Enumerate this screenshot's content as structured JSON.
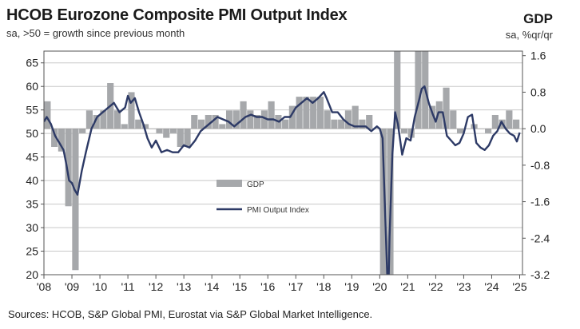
{
  "colors": {
    "gdp_bar": "#a6a8ab",
    "pmi_line": "#2d3a66",
    "grid": "#c8c8c8",
    "axis": "#555555"
  },
  "chart_data": {
    "type": "bar+line",
    "title": "HCOB Eurozone Composite PMI Output Index",
    "subtitle": "sa, >50 = growth since previous month",
    "right_title": "GDP",
    "right_subtitle": "sa, %qr/qr",
    "source": "Sources: HCOB, S&P Global PMI,  Eurostat via S&P Global Market Intelligence.",
    "left_axis": {
      "ticks": [
        "20",
        "25",
        "30",
        "35",
        "40",
        "45",
        "50",
        "55",
        "60",
        "65"
      ],
      "range": [
        20,
        67.5
      ]
    },
    "right_axis": {
      "ticks": [
        "-3.2",
        "-2.4",
        "-1.6",
        "-0.8",
        "0.0",
        "0.8",
        "1.6"
      ],
      "range": [
        -3.2,
        1.7
      ]
    },
    "x_ticks": [
      "'08",
      "'09",
      "'10",
      "'11",
      "'12",
      "'13",
      "'14",
      "'15",
      "'16",
      "'17",
      "'18",
      "'19",
      "'20",
      "'21",
      "'22",
      "'23",
      "'24",
      "'25"
    ],
    "x_range": [
      2008.0,
      2025.1
    ],
    "legend": [
      {
        "name": "GDP",
        "kind": "bar"
      },
      {
        "name": "PMI Output Index",
        "kind": "line"
      }
    ],
    "gdp_quarterly": {
      "start": "2008-Q1",
      "unit": "% q/q",
      "values": [
        0.6,
        -0.4,
        -0.5,
        -1.7,
        -3.1,
        -0.1,
        0.4,
        0.3,
        0.4,
        1.0,
        0.4,
        0.1,
        0.8,
        0.2,
        0.1,
        0.0,
        -0.1,
        -0.2,
        -0.1,
        -0.4,
        -0.4,
        0.3,
        0.2,
        0.3,
        0.3,
        0.1,
        0.4,
        0.4,
        0.6,
        0.4,
        0.3,
        0.4,
        0.6,
        0.3,
        0.2,
        0.5,
        0.7,
        0.7,
        0.7,
        0.7,
        0.4,
        0.2,
        0.2,
        0.4,
        0.5,
        0.2,
        0.3,
        0.0,
        -3.5,
        -11.2,
        12.5,
        -0.1,
        -0.2,
        2.2,
        2.2,
        0.5,
        0.6,
        0.9,
        0.4,
        -0.1,
        0.0,
        0.1,
        0.0,
        -0.1,
        0.3,
        0.2,
        0.4,
        0.2
      ],
      "out_of_range_labels_note": ""
    },
    "pmi_series": {
      "sampling": "quarterly-ish points",
      "x": [
        2008.0,
        2008.1,
        2008.25,
        2008.4,
        2008.55,
        2008.7,
        2008.8,
        2008.9,
        2009.0,
        2009.1,
        2009.2,
        2009.35,
        2009.5,
        2009.7,
        2009.9,
        2010.1,
        2010.3,
        2010.5,
        2010.7,
        2010.9,
        2011.0,
        2011.1,
        2011.25,
        2011.4,
        2011.55,
        2011.7,
        2011.85,
        2012.0,
        2012.2,
        2012.4,
        2012.6,
        2012.8,
        2013.0,
        2013.2,
        2013.4,
        2013.6,
        2013.8,
        2014.0,
        2014.2,
        2014.4,
        2014.6,
        2014.8,
        2015.0,
        2015.2,
        2015.4,
        2015.6,
        2015.8,
        2016.0,
        2016.2,
        2016.4,
        2016.6,
        2016.8,
        2017.0,
        2017.2,
        2017.4,
        2017.6,
        2017.8,
        2018.0,
        2018.1,
        2018.3,
        2018.5,
        2018.7,
        2018.9,
        2019.1,
        2019.3,
        2019.5,
        2019.7,
        2019.9,
        2020.0,
        2020.1,
        2020.2,
        2020.3,
        2020.35,
        2020.45,
        2020.55,
        2020.65,
        2020.8,
        2020.95,
        2021.1,
        2021.25,
        2021.4,
        2021.5,
        2021.6,
        2021.75,
        2021.9,
        2022.0,
        2022.1,
        2022.25,
        2022.4,
        2022.55,
        2022.7,
        2022.85,
        2023.0,
        2023.15,
        2023.3,
        2023.45,
        2023.6,
        2023.75,
        2023.9,
        2024.05,
        2024.2,
        2024.35,
        2024.5,
        2024.65,
        2024.8,
        2024.9,
        2025.0
      ],
      "values": [
        52.5,
        53.5,
        52.0,
        49.5,
        48.0,
        46.5,
        43.5,
        40.0,
        39.5,
        38.0,
        37.0,
        42.0,
        46.0,
        51.0,
        53.5,
        54.5,
        55.5,
        56.5,
        54.5,
        55.5,
        58.0,
        56.5,
        57.5,
        54.5,
        52.0,
        49.0,
        47.0,
        48.5,
        46.0,
        46.5,
        46.0,
        46.0,
        47.5,
        47.0,
        48.5,
        50.5,
        51.5,
        52.5,
        53.5,
        53.0,
        52.5,
        51.5,
        52.5,
        53.5,
        54.0,
        53.5,
        53.5,
        53.0,
        53.0,
        52.5,
        53.5,
        53.5,
        55.5,
        56.5,
        57.5,
        56.5,
        57.5,
        58.8,
        57.5,
        54.5,
        54.5,
        53.0,
        52.0,
        51.5,
        51.5,
        51.5,
        50.5,
        51.5,
        51.0,
        49.0,
        31.5,
        14.0,
        28.0,
        45.5,
        54.5,
        52.0,
        45.5,
        49.0,
        48.5,
        53.5,
        57.0,
        59.5,
        60.0,
        56.5,
        54.0,
        52.5,
        54.5,
        54.5,
        49.5,
        48.5,
        47.5,
        48.0,
        50.0,
        53.5,
        54.0,
        48.0,
        47.0,
        46.5,
        47.5,
        49.5,
        50.5,
        52.5,
        51.0,
        50.0,
        49.5,
        48.3,
        50.2
      ]
    }
  }
}
